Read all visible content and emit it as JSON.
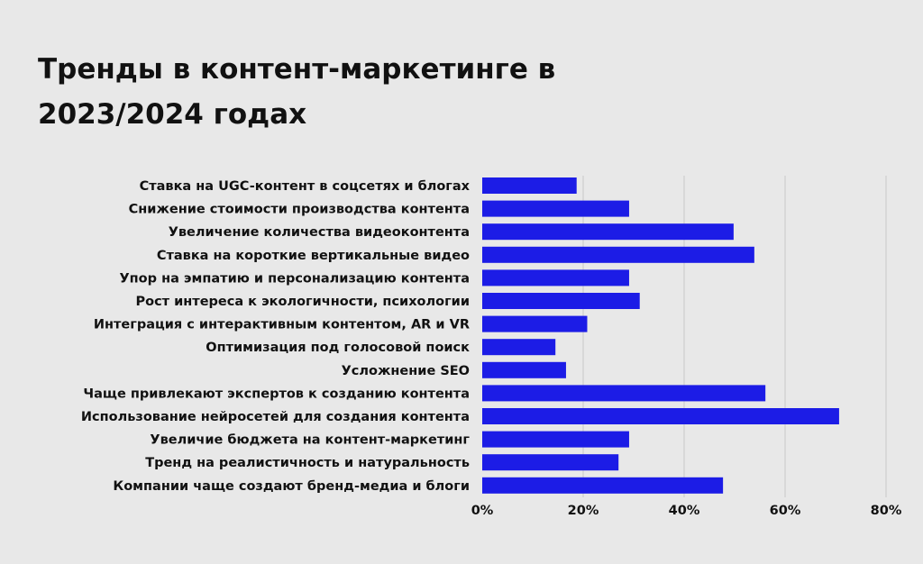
{
  "title": "Тренды в контент-маркетинге в 2023/2024 годах",
  "chart_data": {
    "type": "bar",
    "orientation": "horizontal",
    "title": "Тренды в контент-маркетинге в 2023/2024 годах",
    "categories": [
      "Ставка на UGC-контент в соцсетях и блогах",
      "Снижение стоимости производства контента",
      "Увеличение количества видеоконтента",
      "Ставка на короткие вертикальные видео",
      "Упор на эмпатию и персонализацию контента",
      "Рост интереса к экологичности, психологии",
      "Интеграция с интерактивным контентом, AR и VR",
      "Оптимизация под голосовой поиск",
      "Усложнение SEO",
      "Чаще привлекают экспертов к созданию контента",
      "Использование нейросетей для создания контента",
      "Увеличие бюджета на контент-маркетинг",
      "Тренд на реалистичность и натуральность",
      "Компании чаще создают бренд-медиа и блоги"
    ],
    "values": [
      18.7,
      29.1,
      49.8,
      53.9,
      29.1,
      31.2,
      20.8,
      14.5,
      16.6,
      56.1,
      70.7,
      29.1,
      27.0,
      47.7
    ],
    "xlim": [
      0,
      80
    ],
    "xticks": [
      0,
      20,
      40,
      60,
      80
    ],
    "tick_labels": [
      "0%",
      "20%",
      "40%",
      "60%",
      "80%"
    ],
    "grid": true,
    "bar_color": "#1c1ce6",
    "grid_color": "#c9c9c9"
  }
}
